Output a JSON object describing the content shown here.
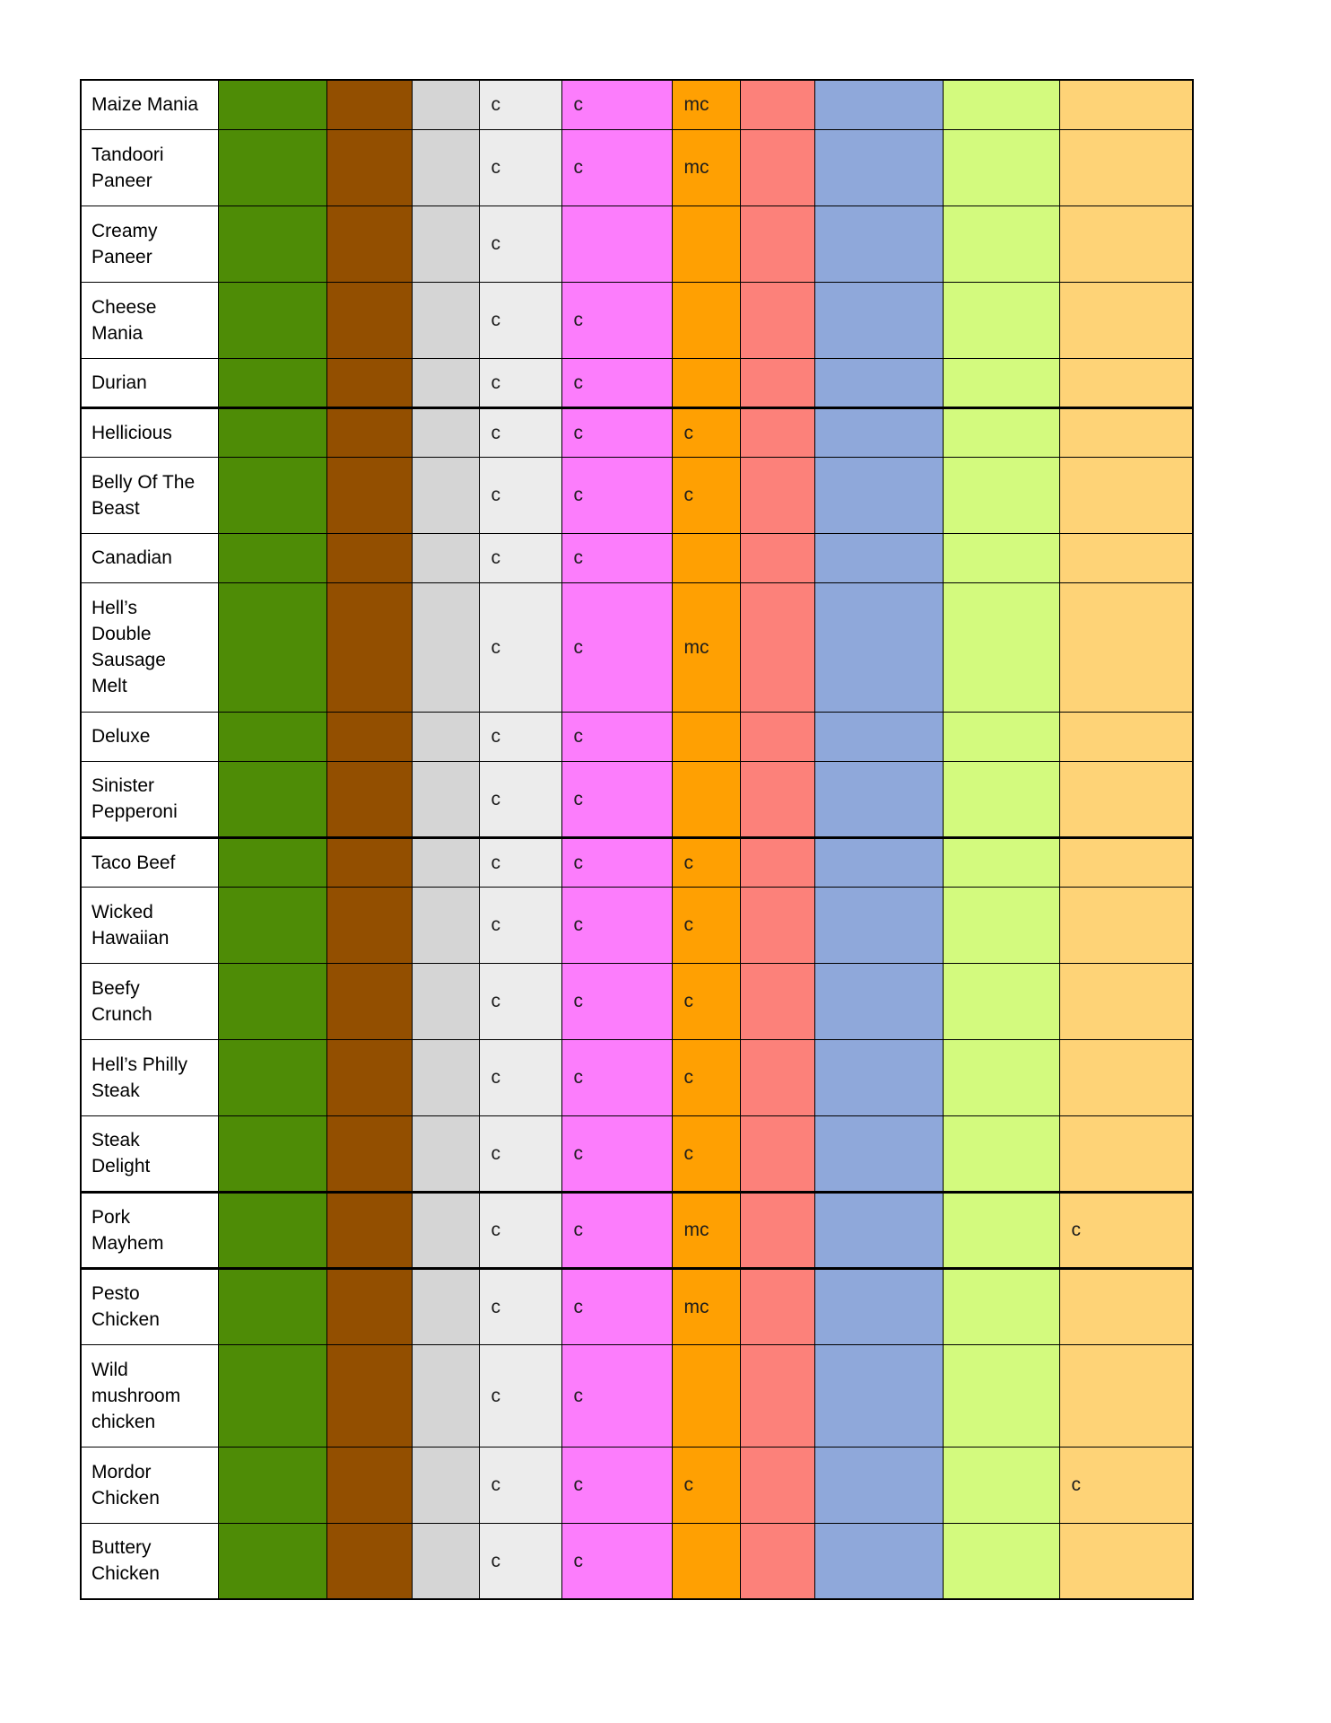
{
  "table": {
    "border_color": "#000000",
    "marker_color": "#1c1c1c",
    "columns": [
      {
        "name": "row-label",
        "color": "#ffffff"
      },
      {
        "name": "green",
        "color": "#4e8c06"
      },
      {
        "name": "brown",
        "color": "#934f00"
      },
      {
        "name": "gray",
        "color": "#d5d5d5"
      },
      {
        "name": "light-gray",
        "color": "#ececec"
      },
      {
        "name": "magenta",
        "color": "#fc7dfc"
      },
      {
        "name": "orange",
        "color": "#ffa002"
      },
      {
        "name": "salmon",
        "color": "#fc817a"
      },
      {
        "name": "blue",
        "color": "#8fa8da"
      },
      {
        "name": "yellow-green",
        "color": "#d3fa7e"
      },
      {
        "name": "tan",
        "color": "#fed377"
      }
    ],
    "rows": [
      {
        "label": "Maize Mania",
        "section_end": false,
        "cells": [
          "",
          "",
          "",
          "c",
          "c",
          "mc",
          "",
          "",
          "",
          ""
        ]
      },
      {
        "label": "Tandoori\nPaneer",
        "section_end": false,
        "cells": [
          "",
          "",
          "",
          "c",
          "c",
          "mc",
          "",
          "",
          "",
          ""
        ]
      },
      {
        "label": "Creamy\nPaneer",
        "section_end": false,
        "cells": [
          "",
          "",
          "",
          "c",
          "",
          "",
          "",
          "",
          "",
          ""
        ]
      },
      {
        "label": "Cheese\nMania",
        "section_end": false,
        "cells": [
          "",
          "",
          "",
          "c",
          "c",
          "",
          "",
          "",
          "",
          ""
        ]
      },
      {
        "label": "Durian",
        "section_end": true,
        "cells": [
          "",
          "",
          "",
          "c",
          "c",
          "",
          "",
          "",
          "",
          ""
        ]
      },
      {
        "label": "Hellicious",
        "section_end": false,
        "cells": [
          "",
          "",
          "",
          "c",
          "c",
          "c",
          "",
          "",
          "",
          ""
        ]
      },
      {
        "label": "Belly Of The\nBeast",
        "section_end": false,
        "cells": [
          "",
          "",
          "",
          "c",
          "c",
          "c",
          "",
          "",
          "",
          ""
        ]
      },
      {
        "label": "Canadian",
        "section_end": false,
        "cells": [
          "",
          "",
          "",
          "c",
          "c",
          "",
          "",
          "",
          "",
          ""
        ]
      },
      {
        "label": "Hell’s\nDouble\nSausage\nMelt",
        "section_end": false,
        "cells": [
          "",
          "",
          "",
          "c",
          "c",
          "mc",
          "",
          "",
          "",
          ""
        ]
      },
      {
        "label": "Deluxe",
        "section_end": false,
        "cells": [
          "",
          "",
          "",
          "c",
          "c",
          "",
          "",
          "",
          "",
          ""
        ]
      },
      {
        "label": "Sinister\nPepperoni",
        "section_end": true,
        "cells": [
          "",
          "",
          "",
          "c",
          "c",
          "",
          "",
          "",
          "",
          ""
        ]
      },
      {
        "label": "Taco Beef",
        "section_end": false,
        "cells": [
          "",
          "",
          "",
          "c",
          "c",
          "c",
          "",
          "",
          "",
          ""
        ]
      },
      {
        "label": "Wicked\nHawaiian",
        "section_end": false,
        "cells": [
          "",
          "",
          "",
          "c",
          "c",
          "c",
          "",
          "",
          "",
          ""
        ]
      },
      {
        "label": "Beefy\nCrunch",
        "section_end": false,
        "cells": [
          "",
          "",
          "",
          "c",
          "c",
          "c",
          "",
          "",
          "",
          ""
        ]
      },
      {
        "label": "Hell’s Philly\nSteak",
        "section_end": false,
        "cells": [
          "",
          "",
          "",
          "c",
          "c",
          "c",
          "",
          "",
          "",
          ""
        ]
      },
      {
        "label": "Steak\nDelight",
        "section_end": true,
        "cells": [
          "",
          "",
          "",
          "c",
          "c",
          "c",
          "",
          "",
          "",
          ""
        ]
      },
      {
        "label": "Pork\nMayhem",
        "section_end": true,
        "cells": [
          "",
          "",
          "",
          "c",
          "c",
          "mc",
          "",
          "",
          "",
          "c"
        ]
      },
      {
        "label": "Pesto\nChicken",
        "section_end": false,
        "cells": [
          "",
          "",
          "",
          "c",
          "c",
          "mc",
          "",
          "",
          "",
          ""
        ]
      },
      {
        "label": "Wild\nmushroom\nchicken",
        "section_end": false,
        "cells": [
          "",
          "",
          "",
          "c",
          "c",
          "",
          "",
          "",
          "",
          ""
        ]
      },
      {
        "label": "Mordor\nChicken",
        "section_end": false,
        "cells": [
          "",
          "",
          "",
          "c",
          "c",
          "c",
          "",
          "",
          "",
          "c"
        ]
      },
      {
        "label": "Buttery\nChicken",
        "section_end": false,
        "cells": [
          "",
          "",
          "",
          "c",
          "c",
          "",
          "",
          "",
          "",
          ""
        ]
      }
    ]
  }
}
